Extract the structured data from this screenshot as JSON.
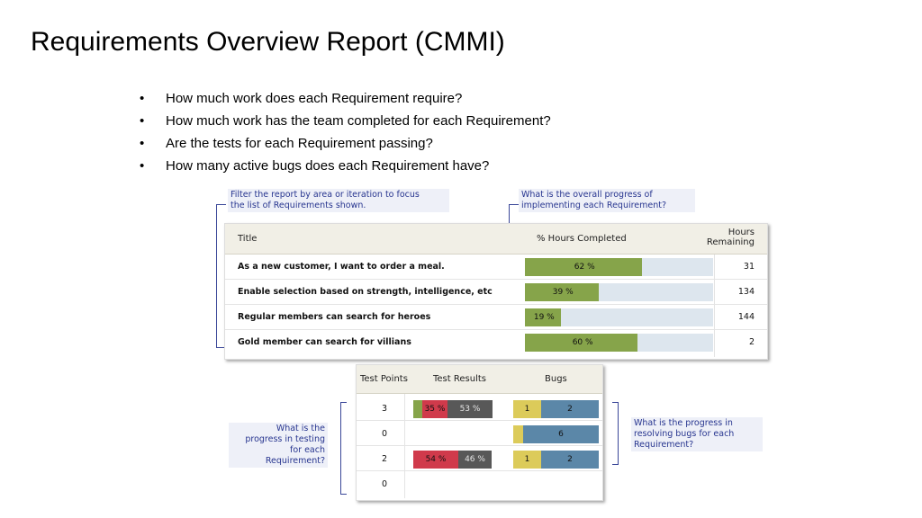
{
  "title": "Requirements Overview Report (CMMI)",
  "bullets": [
    "How much work does each Requirement require?",
    "How much work has the team completed for each Requirement?",
    "Are the tests for each Requirement passing?",
    "How many active bugs does each Requirement have?"
  ],
  "bullet_glyph": "•",
  "callouts": {
    "filter": "Filter the report by area or iteration to focus\nthe list of Requirements shown.",
    "progress": "What is the overall progress of\nimplementing each Requirement?",
    "testing": "What is the\nprogress in testing\nfor each\nRequirement?",
    "bugs": "What is the progress in\nresolving bugs for each\nRequirement?"
  },
  "table1": {
    "headers": {
      "title": "Title",
      "pct": "% Hours Completed",
      "hours_line1": "Hours",
      "hours_line2": "Remaining"
    },
    "rows": [
      {
        "title": "As a new customer, I want to order a meal.",
        "pct": 62,
        "pct_label": "62 %",
        "hours": "31"
      },
      {
        "title": "Enable selection based on strength, intelligence, etc",
        "pct": 39,
        "pct_label": "39 %",
        "hours": "134"
      },
      {
        "title": "Regular members can search for heroes",
        "pct": 19,
        "pct_label": "19 %",
        "hours": "144"
      },
      {
        "title": "Gold member can search for villians",
        "pct": 60,
        "pct_label": "60 %",
        "hours": "2"
      }
    ]
  },
  "table2": {
    "headers": {
      "test_points": "Test Points",
      "test_results": "Test Results",
      "bugs": "Bugs"
    },
    "rows": [
      {
        "test_points": "3",
        "results": [
          {
            "label": "",
            "color": "#86a44a"
          },
          {
            "label": "35 %",
            "color": "#d03a4b"
          },
          {
            "label": "53 %",
            "color": "#585858"
          }
        ],
        "bugs": [
          {
            "label": "1",
            "color": "#dccb5a"
          },
          {
            "label": "2",
            "color": "#5b87a8"
          }
        ]
      },
      {
        "test_points": "0",
        "results": [],
        "bugs": [
          {
            "label": "",
            "color": "#dccb5a"
          },
          {
            "label": "6",
            "color": "#5b87a8"
          }
        ]
      },
      {
        "test_points": "2",
        "results": [
          {
            "label": "54 %",
            "color": "#d03a4b"
          },
          {
            "label": "46 %",
            "color": "#585858"
          }
        ],
        "bugs": [
          {
            "label": "1",
            "color": "#dccb5a"
          },
          {
            "label": "2",
            "color": "#5b87a8"
          }
        ]
      },
      {
        "test_points": "0",
        "results": [],
        "bugs": []
      }
    ]
  }
}
